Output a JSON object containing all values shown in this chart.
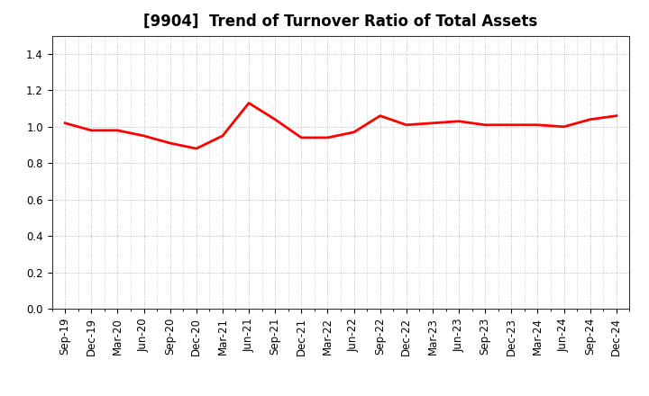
{
  "title": "[9904]  Trend of Turnover Ratio of Total Assets",
  "x_labels": [
    "Sep-19",
    "Dec-19",
    "Mar-20",
    "Jun-20",
    "Sep-20",
    "Dec-20",
    "Mar-21",
    "Jun-21",
    "Sep-21",
    "Dec-21",
    "Mar-22",
    "Jun-22",
    "Sep-22",
    "Dec-22",
    "Mar-23",
    "Jun-23",
    "Sep-23",
    "Dec-23",
    "Mar-24",
    "Jun-24",
    "Sep-24",
    "Dec-24"
  ],
  "y_values": [
    1.02,
    0.98,
    0.98,
    0.95,
    0.91,
    0.88,
    0.95,
    1.13,
    1.04,
    0.94,
    0.94,
    0.97,
    1.06,
    1.01,
    1.02,
    1.03,
    1.01,
    1.01,
    1.01,
    1.0,
    1.04,
    1.06
  ],
  "line_color": "#ff0000",
  "line_width": 2.0,
  "ylim": [
    0.0,
    1.5
  ],
  "yticks": [
    0.0,
    0.2,
    0.4,
    0.6,
    0.8,
    1.0,
    1.2,
    1.4
  ],
  "background_color": "#ffffff",
  "plot_bg_color": "#ffffff",
  "grid_color": "#aaaaaa",
  "title_fontsize": 12,
  "tick_fontsize": 8.5
}
